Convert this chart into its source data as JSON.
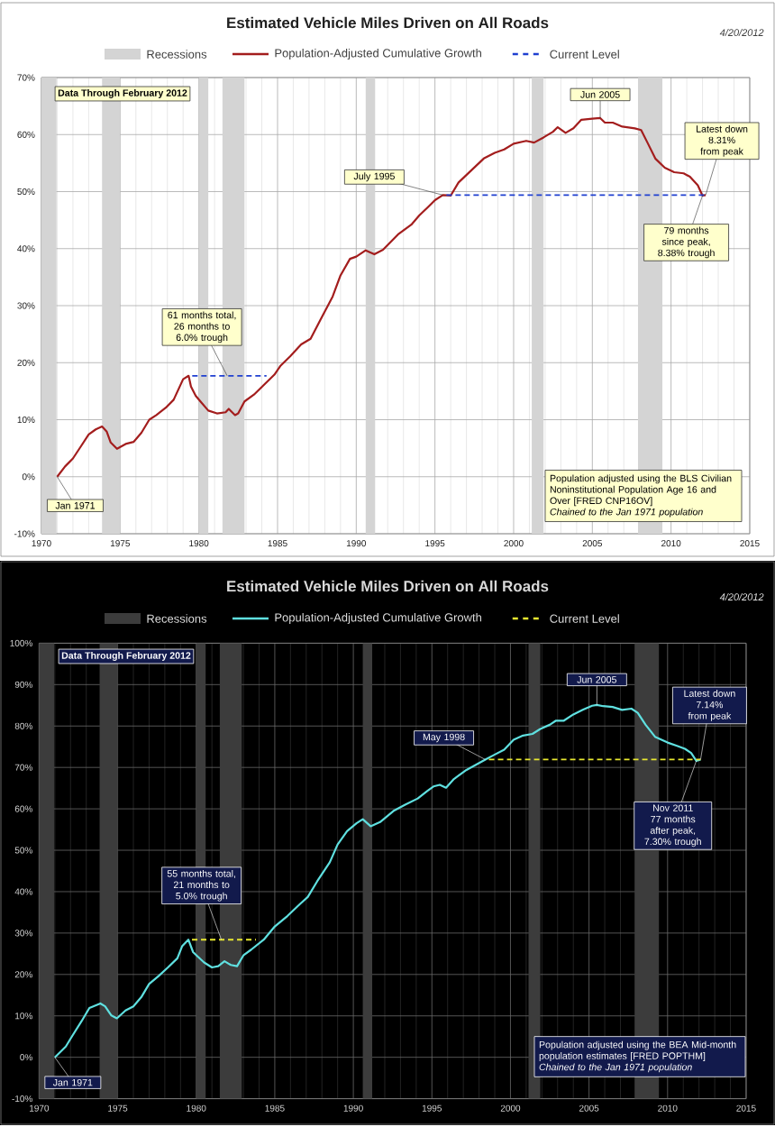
{
  "chart_data": [
    {
      "type": "line",
      "title": "Estimated Vehicle Miles Driven on All Roads",
      "annotations": [
        "4/20/2012",
        "Data Through February 2012",
        {
          "text": "Jan 1971",
          "x": 1971.0,
          "y": 0
        },
        {
          "text": "61 months total, 26 months to 6.0% trough",
          "x": 1981.8,
          "y": 17.7
        },
        {
          "text": "July 1995",
          "x": 1995.5,
          "y": 49.4
        },
        {
          "text": "Jun 2005",
          "x": 2005.5,
          "y": 62.9
        },
        {
          "text": "Latest down 8.31% from peak",
          "x": 2012.2,
          "y": 49.4
        },
        {
          "text": "79 months since peak, 8.38% trough",
          "x": 2012.0,
          "y": 49.3
        },
        "Population adjusted using the BLS Civilian Noninstitutional Population Age 16 and Over [FRED CNP16OV]",
        "Chained to the Jan 1971 population"
      ],
      "series": [
        {
          "name": "Population-Adjusted Cumulative Growth",
          "color": "#a31d1d",
          "x": [
            1971.0,
            1971.5,
            1972.0,
            1972.5,
            1973.0,
            1973.45,
            1973.85,
            1974.15,
            1974.4,
            1974.8,
            1975.4,
            1975.85,
            1976.35,
            1976.85,
            1977.3,
            1977.9,
            1978.4,
            1978.7,
            1979.0,
            1979.35,
            1979.5,
            1979.8,
            1980.1,
            1980.6,
            1981.15,
            1981.7,
            1981.9,
            1982.3,
            1982.5,
            1982.9,
            1983.5,
            1984.2,
            1984.8,
            1985.2,
            1985.8,
            1986.5,
            1987.1,
            1987.7,
            1988.5,
            1989.0,
            1989.6,
            1990.0,
            1990.6,
            1991.15,
            1991.7,
            1992.7,
            1993.5,
            1994.0,
            1994.6,
            1995.0,
            1995.5,
            1996.0,
            1996.5,
            1997.3,
            1998.1,
            1998.8,
            1999.4,
            2000.0,
            2000.8,
            2001.3,
            2001.9,
            2002.5,
            2002.8,
            2003.3,
            2003.8,
            2004.3,
            2005.0,
            2005.5,
            2005.8,
            2006.3,
            2006.9,
            2007.7,
            2008.1,
            2008.5,
            2009.0,
            2009.6,
            2010.2,
            2010.8,
            2011.2,
            2011.7,
            2012.0,
            2012.2
          ],
          "values": [
            0,
            1.8,
            3.2,
            5.3,
            7.4,
            8.3,
            8.8,
            7.9,
            6.0,
            4.9,
            5.8,
            6.1,
            7.7,
            10.0,
            10.8,
            12.1,
            13.5,
            15.3,
            17.1,
            17.7,
            15.8,
            14.2,
            13.2,
            11.6,
            11.1,
            11.3,
            11.9,
            10.8,
            11.1,
            13.2,
            14.4,
            16.3,
            17.9,
            19.5,
            21.1,
            23.2,
            24.2,
            27.4,
            31.6,
            35.3,
            38.2,
            38.6,
            39.7,
            39.0,
            39.8,
            42.6,
            44.2,
            45.8,
            47.4,
            48.5,
            49.4,
            49.3,
            51.6,
            53.7,
            55.8,
            56.8,
            57.4,
            58.4,
            58.9,
            58.6,
            59.5,
            60.5,
            61.3,
            60.3,
            61.1,
            62.6,
            62.8,
            62.9,
            62.1,
            62.1,
            61.4,
            61.1,
            60.8,
            58.6,
            55.8,
            54.2,
            53.4,
            53.2,
            52.6,
            51.1,
            49.3,
            49.4
          ]
        },
        {
          "name": "Current Level",
          "color": "#1f3fd0",
          "line_style": "dashed",
          "x": [
            1995.5,
            2012.2
          ],
          "values": [
            49.4,
            49.4
          ]
        },
        {
          "color": "#1f3fd0",
          "line_style": "dashed",
          "x": [
            1979.35,
            1984.3
          ],
          "values": [
            17.7,
            17.7
          ]
        }
      ],
      "bands": [
        {
          "axis": "x",
          "from": 1970,
          "to": 1970.96,
          "label": "Recessions",
          "color": "#d4d4d4"
        },
        {
          "axis": "x",
          "from": 1973.85,
          "to": 1975.0,
          "color": "#d4d4d4"
        },
        {
          "axis": "x",
          "from": 1980.0,
          "to": 1980.6,
          "color": "#d4d4d4"
        },
        {
          "axis": "x",
          "from": 1981.5,
          "to": 1982.9,
          "color": "#d4d4d4"
        },
        {
          "axis": "x",
          "from": 1990.6,
          "to": 1991.2,
          "color": "#d4d4d4"
        },
        {
          "axis": "x",
          "from": 2001.15,
          "to": 2001.9,
          "color": "#d4d4d4"
        },
        {
          "axis": "x",
          "from": 2007.9,
          "to": 2009.45,
          "color": "#d4d4d4"
        }
      ],
      "xlim": [
        1970,
        2015
      ],
      "xticks": [
        1970,
        1975,
        1980,
        1985,
        1990,
        1995,
        2000,
        2005,
        2010,
        2015
      ],
      "ylim": [
        -10,
        70
      ],
      "yticks": [
        {
          "value": -10,
          "label": "-10%"
        },
        {
          "value": 0,
          "label": "0%"
        },
        {
          "value": 10,
          "label": "10%"
        },
        {
          "value": 20,
          "label": "20%"
        },
        {
          "value": 30,
          "label": "30%"
        },
        {
          "value": 40,
          "label": "40%"
        },
        {
          "value": 50,
          "label": "50%"
        },
        {
          "value": 60,
          "label": "60%"
        },
        {
          "value": 70,
          "label": "70%"
        }
      ],
      "grid": true,
      "legend": "top"
    },
    {
      "type": "line",
      "title": "Estimated Vehicle Miles Driven on All Roads",
      "annotations": [
        "4/20/2012",
        "Data Through February 2012",
        {
          "text": "Jan 1971",
          "x": 1971.0,
          "y": 0
        },
        {
          "text": "55 months total, 21 months to 5.0% trough",
          "x": 1981.6,
          "y": 28.4
        },
        {
          "text": "May 1998",
          "x": 1998.4,
          "y": 71.9
        },
        {
          "text": "Jun 2005",
          "x": 2005.5,
          "y": 85.1
        },
        {
          "text": "Latest down 7.14% from peak",
          "x": 2012.1,
          "y": 71.9
        },
        {
          "text": "Nov 2011 77 months after peak, 7.30% trough",
          "x": 2011.83,
          "y": 71.6
        },
        "Population adjusted using the BEA Mid-month population estimates [FRED POPTHM]",
        "Chained to the Jan 1971 population"
      ],
      "series": [
        {
          "name": "Population-Adjusted Cumulative Growth",
          "color": "#5fe0e0",
          "x": [
            1971.0,
            1971.7,
            1972.1,
            1972.7,
            1973.2,
            1973.9,
            1974.2,
            1974.6,
            1974.95,
            1975.5,
            1976.0,
            1976.5,
            1977.0,
            1977.6,
            1978.2,
            1978.8,
            1979.1,
            1979.5,
            1979.8,
            1980.1,
            1980.5,
            1981.0,
            1981.4,
            1981.8,
            1982.2,
            1982.6,
            1983.0,
            1983.5,
            1984.3,
            1985.0,
            1985.8,
            1986.6,
            1987.1,
            1987.7,
            1988.5,
            1989.0,
            1989.6,
            1990.2,
            1990.6,
            1991.1,
            1991.7,
            1992.6,
            1993.3,
            1994.1,
            1994.7,
            1995.1,
            1995.5,
            1995.9,
            1996.4,
            1997.2,
            1998.4,
            1998.95,
            1999.6,
            2000.2,
            2000.8,
            2001.4,
            2001.9,
            2002.5,
            2002.9,
            2003.4,
            2004.0,
            2004.6,
            2005.2,
            2005.5,
            2005.9,
            2006.5,
            2007.1,
            2007.7,
            2008.1,
            2008.6,
            2009.2,
            2010.0,
            2010.6,
            2011.1,
            2011.5,
            2011.83,
            2012.1
          ],
          "values": [
            0,
            2.6,
            5.1,
            8.7,
            11.9,
            13.0,
            12.3,
            10.1,
            9.4,
            11.3,
            12.3,
            14.5,
            17.7,
            19.6,
            21.7,
            23.9,
            26.8,
            28.4,
            25.4,
            24.3,
            22.9,
            21.7,
            22.0,
            23.2,
            22.3,
            22.0,
            24.6,
            26.0,
            28.4,
            31.6,
            34.1,
            37.0,
            38.7,
            42.5,
            47.1,
            51.4,
            54.6,
            56.5,
            57.5,
            55.8,
            56.8,
            59.6,
            61.0,
            62.5,
            64.3,
            65.4,
            65.8,
            65.1,
            67.2,
            69.4,
            71.9,
            73.0,
            74.3,
            76.7,
            77.7,
            78.1,
            79.3,
            80.3,
            81.3,
            81.3,
            82.8,
            83.9,
            84.9,
            85.1,
            84.8,
            84.6,
            83.9,
            84.2,
            83.2,
            80.3,
            77.4,
            76.0,
            75.2,
            74.5,
            73.5,
            71.6,
            71.9
          ]
        },
        {
          "name": "Current Level",
          "color": "#e8e830",
          "line_style": "dashed",
          "x": [
            1998.4,
            2012.1
          ],
          "values": [
            71.9,
            71.9
          ]
        },
        {
          "color": "#e8e830",
          "line_style": "dashed",
          "x": [
            1979.5,
            1983.8
          ],
          "values": [
            28.4,
            28.4
          ]
        }
      ],
      "bands": [
        {
          "axis": "x",
          "from": 1970,
          "to": 1970.96,
          "label": "Recessions",
          "color": "#3c3c3c"
        },
        {
          "axis": "x",
          "from": 1973.85,
          "to": 1975.0,
          "color": "#3c3c3c"
        },
        {
          "axis": "x",
          "from": 1980.0,
          "to": 1980.6,
          "color": "#3c3c3c"
        },
        {
          "axis": "x",
          "from": 1981.5,
          "to": 1982.9,
          "color": "#3c3c3c"
        },
        {
          "axis": "x",
          "from": 1990.6,
          "to": 1991.2,
          "color": "#3c3c3c"
        },
        {
          "axis": "x",
          "from": 2001.15,
          "to": 2001.9,
          "color": "#3c3c3c"
        },
        {
          "axis": "x",
          "from": 2007.9,
          "to": 2009.45,
          "color": "#3c3c3c"
        }
      ],
      "xlim": [
        1970,
        2015
      ],
      "xticks": [
        1970,
        1975,
        1980,
        1985,
        1990,
        1995,
        2000,
        2005,
        2010,
        2015
      ],
      "ylim": [
        -10,
        100
      ],
      "yticks": [
        {
          "value": -10,
          "label": "-10%"
        },
        {
          "value": 0,
          "label": "0%"
        },
        {
          "value": 10,
          "label": "10%"
        },
        {
          "value": 20,
          "label": "20%"
        },
        {
          "value": 30,
          "label": "30%"
        },
        {
          "value": 40,
          "label": "40%"
        },
        {
          "value": 50,
          "label": "50%"
        },
        {
          "value": 60,
          "label": "60%"
        },
        {
          "value": 70,
          "label": "70%"
        },
        {
          "value": 80,
          "label": "80%"
        },
        {
          "value": 90,
          "label": "90%"
        },
        {
          "value": 100,
          "label": "100%"
        }
      ],
      "grid": true,
      "legend": "top"
    }
  ]
}
